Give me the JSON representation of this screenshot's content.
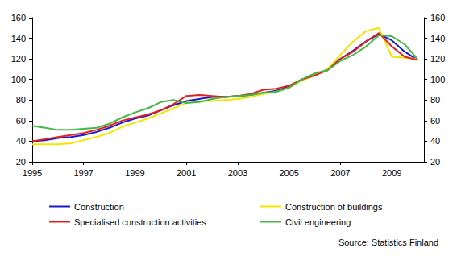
{
  "chart_data": {
    "type": "line",
    "source": "Source: Statistics Finland",
    "x": [
      1995,
      1995.5,
      1996,
      1996.5,
      1997,
      1997.5,
      1998,
      1998.5,
      1999,
      1999.5,
      2000,
      2000.5,
      2001,
      2001.5,
      2002,
      2002.5,
      2003,
      2003.5,
      2004,
      2004.5,
      2005,
      2005.5,
      2006,
      2006.5,
      2007,
      2007.5,
      2008,
      2008.5,
      2009,
      2009.5,
      2010
    ],
    "series": [
      {
        "name": "Construction",
        "color": "#1a1acc",
        "values": [
          40,
          41,
          43,
          44,
          46,
          49,
          53,
          58,
          62,
          65,
          70,
          75,
          79,
          81,
          83,
          83,
          84,
          85,
          87,
          89,
          93,
          100,
          104,
          110,
          120,
          128,
          137,
          144,
          138,
          127,
          119
        ]
      },
      {
        "name": "Construction of buildings",
        "color": "#f2e600",
        "values": [
          37,
          37,
          37,
          38,
          41,
          44,
          48,
          54,
          58,
          62,
          67,
          72,
          77,
          79,
          79,
          80,
          81,
          83,
          86,
          88,
          92,
          99,
          104,
          110,
          124,
          137,
          147,
          150,
          122,
          121,
          120
        ]
      },
      {
        "name": "Specialised construction activities",
        "color": "#e02020",
        "values": [
          40,
          42,
          44,
          46,
          48,
          51,
          55,
          60,
          63,
          66,
          70,
          76,
          84,
          85,
          84,
          83,
          84,
          86,
          90,
          91,
          94,
          100,
          104,
          109,
          120,
          127,
          137,
          145,
          132,
          122,
          119
        ]
      },
      {
        "name": "Civil engineering",
        "color": "#44b844",
        "values": [
          55,
          53,
          51,
          51,
          52,
          53,
          57,
          63,
          68,
          72,
          78,
          80,
          77,
          78,
          81,
          83,
          84,
          85,
          87,
          88,
          92,
          100,
          106,
          109,
          118,
          124,
          132,
          143,
          142,
          134,
          120
        ]
      }
    ],
    "xlim": [
      1995,
      2010.25
    ],
    "xticks": [
      1995,
      1997,
      1999,
      2001,
      2003,
      2005,
      2007,
      2009
    ],
    "ylim": [
      20,
      160
    ],
    "yticks": [
      20,
      40,
      60,
      80,
      100,
      120,
      140,
      160
    ],
    "y2lim": [
      20,
      160
    ],
    "y2ticks": [
      20,
      40,
      60,
      80,
      100,
      120,
      140,
      160
    ],
    "grid": false,
    "legend": "bottom"
  }
}
